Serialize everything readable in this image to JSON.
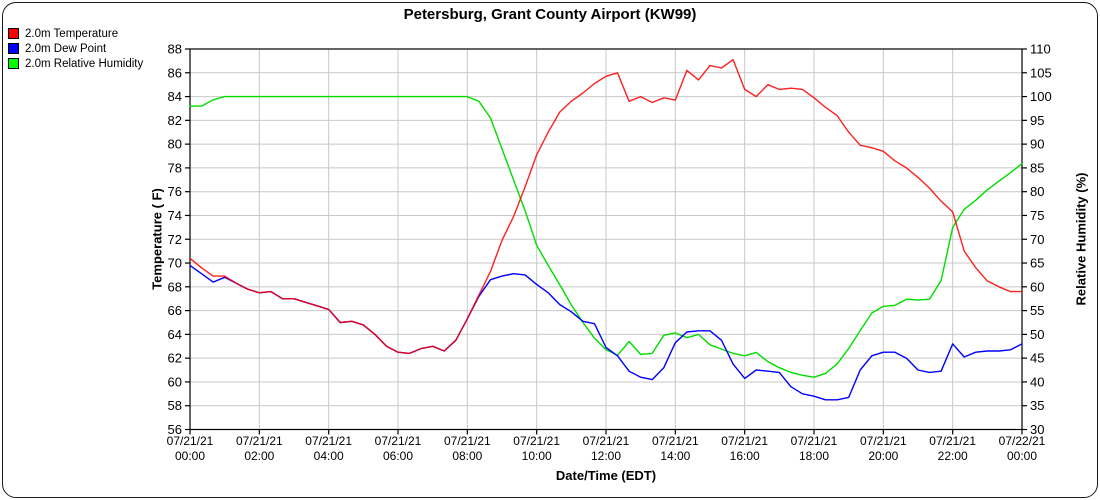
{
  "title": "Petersburg, Grant County Airport (KW99)",
  "legend": {
    "items": [
      {
        "label": "2.0m Temperature",
        "color": "#ff0000"
      },
      {
        "label": "2.0m Dew Point",
        "color": "#0000ff"
      },
      {
        "label": "2.0m Relative Humidity",
        "color": "#00ff00"
      }
    ]
  },
  "axes": {
    "left_title": "Temperature ( F)",
    "right_title": "Relative Humidity (%)",
    "x_title": "Date/Time (EDT)"
  },
  "colors": {
    "grid": "#c8c8c8",
    "axis": "#000000",
    "background": "#ffffff",
    "temperature": "#ff0000",
    "dew_point": "#0000ff",
    "relative_humidity": "#00dd00"
  },
  "chart_data": {
    "type": "line",
    "title": "Petersburg, Grant County Airport (KW99)",
    "xlabel": "Date/Time (EDT)",
    "ylabel_left": "Temperature ( F)",
    "ylabel_right": "Relative Humidity (%)",
    "grid": true,
    "legend_position": "top-left",
    "x_axis": {
      "tick_hours": [
        0,
        2,
        4,
        6,
        8,
        10,
        12,
        14,
        16,
        18,
        20,
        22,
        24
      ],
      "tick_labels": [
        {
          "date": "07/21/21",
          "time": "00:00"
        },
        {
          "date": "07/21/21",
          "time": "02:00"
        },
        {
          "date": "07/21/21",
          "time": "04:00"
        },
        {
          "date": "07/21/21",
          "time": "06:00"
        },
        {
          "date": "07/21/21",
          "time": "08:00"
        },
        {
          "date": "07/21/21",
          "time": "10:00"
        },
        {
          "date": "07/21/21",
          "time": "12:00"
        },
        {
          "date": "07/21/21",
          "time": "14:00"
        },
        {
          "date": "07/21/21",
          "time": "16:00"
        },
        {
          "date": "07/21/21",
          "time": "18:00"
        },
        {
          "date": "07/21/21",
          "time": "20:00"
        },
        {
          "date": "07/21/21",
          "time": "22:00"
        },
        {
          "date": "07/22/21",
          "time": "00:00"
        }
      ]
    },
    "y_left": {
      "min": 56,
      "max": 88,
      "step": 2,
      "ticks": [
        56,
        58,
        60,
        62,
        64,
        66,
        68,
        70,
        72,
        74,
        76,
        78,
        80,
        82,
        84,
        86,
        88
      ]
    },
    "y_right": {
      "min": 30,
      "max": 110,
      "step": 5,
      "ticks": [
        30,
        35,
        40,
        45,
        50,
        55,
        60,
        65,
        70,
        75,
        80,
        85,
        90,
        95,
        100,
        105,
        110
      ]
    },
    "x_hours": [
      0,
      0.333,
      0.667,
      1,
      1.333,
      1.667,
      2,
      2.333,
      2.667,
      3,
      3.333,
      3.667,
      4,
      4.333,
      4.667,
      5,
      5.333,
      5.667,
      6,
      6.333,
      6.667,
      7,
      7.333,
      7.667,
      8,
      8.333,
      8.667,
      9,
      9.333,
      9.667,
      10,
      10.333,
      10.667,
      11,
      11.333,
      11.667,
      12,
      12.333,
      12.667,
      13,
      13.333,
      13.667,
      14,
      14.333,
      14.667,
      15,
      15.333,
      15.667,
      16,
      16.333,
      16.667,
      17,
      17.333,
      17.667,
      18,
      18.333,
      18.667,
      19,
      19.333,
      19.667,
      20,
      20.333,
      20.667,
      21,
      21.333,
      21.667,
      22,
      22.333,
      22.667,
      23,
      23.333,
      23.667,
      24
    ],
    "series": [
      {
        "name": "2.0m Temperature",
        "axis": "left",
        "color": "#ff0000",
        "unit": "F",
        "values": [
          70.4,
          69.6,
          68.9,
          68.9,
          68.3,
          67.8,
          67.5,
          67.6,
          67.0,
          67.0,
          66.7,
          66.4,
          66.1,
          65.0,
          65.1,
          64.8,
          64.0,
          63.0,
          62.5,
          62.4,
          62.8,
          63.0,
          62.6,
          63.5,
          65.3,
          67.3,
          69.3,
          71.9,
          73.9,
          76.4,
          79.1,
          81.0,
          82.7,
          83.6,
          84.3,
          85.1,
          85.7,
          86.0,
          83.6,
          84.0,
          83.5,
          83.9,
          83.7,
          86.2,
          85.4,
          86.6,
          86.4,
          87.1,
          84.6,
          84.0,
          85.0,
          84.6,
          84.7,
          84.6,
          83.9,
          83.1,
          82.4,
          81.0,
          79.9,
          79.7,
          79.4,
          78.6,
          78.0,
          77.2,
          76.3,
          75.2,
          74.3,
          71.0,
          69.6,
          68.5,
          68.0,
          67.6,
          67.6
        ]
      },
      {
        "name": "2.0m Dew Point",
        "axis": "left",
        "color": "#0000ff",
        "unit": "F",
        "values": [
          69.8,
          69.1,
          68.4,
          68.8,
          68.3,
          67.8,
          67.5,
          67.6,
          67.0,
          67.0,
          66.7,
          66.4,
          66.1,
          65.0,
          65.1,
          64.8,
          64.0,
          63.0,
          62.5,
          62.4,
          62.8,
          63.0,
          62.6,
          63.5,
          65.3,
          67.2,
          68.6,
          68.9,
          69.1,
          69.0,
          68.2,
          67.5,
          66.5,
          65.9,
          65.1,
          64.9,
          62.9,
          62.2,
          60.9,
          60.4,
          60.2,
          61.2,
          63.3,
          64.2,
          64.3,
          64.3,
          63.5,
          61.5,
          60.3,
          61.0,
          60.9,
          60.8,
          59.6,
          59.0,
          58.8,
          58.5,
          58.5,
          58.7,
          61.0,
          62.2,
          62.5,
          62.5,
          62.0,
          61.0,
          60.8,
          60.9,
          63.2,
          62.1,
          62.5,
          62.6,
          62.6,
          62.7,
          63.2
        ]
      },
      {
        "name": "2.0m Relative Humidity",
        "axis": "right",
        "color": "#00dd00",
        "unit": "%",
        "values": [
          98,
          98,
          99.3,
          100,
          100,
          100,
          100,
          100,
          100,
          100,
          100,
          100,
          100,
          100,
          100,
          100,
          100,
          100,
          100,
          100,
          100,
          100,
          100,
          100,
          100,
          99,
          95.5,
          89,
          82.5,
          76,
          68.7,
          64.5,
          60.4,
          56.2,
          52.5,
          49.2,
          46.8,
          45.6,
          48.5,
          45.8,
          46.0,
          49.8,
          50.3,
          49.3,
          50.0,
          47.8,
          46.9,
          46.0,
          45.5,
          46.2,
          44.3,
          43.0,
          42.0,
          41.4,
          41.0,
          41.8,
          43.8,
          47.0,
          50.8,
          54.5,
          55.9,
          56.1,
          57.4,
          57.2,
          57.4,
          61.3,
          72.5,
          76.3,
          78.2,
          80.4,
          82.2,
          84.0,
          85.9
        ]
      }
    ]
  }
}
